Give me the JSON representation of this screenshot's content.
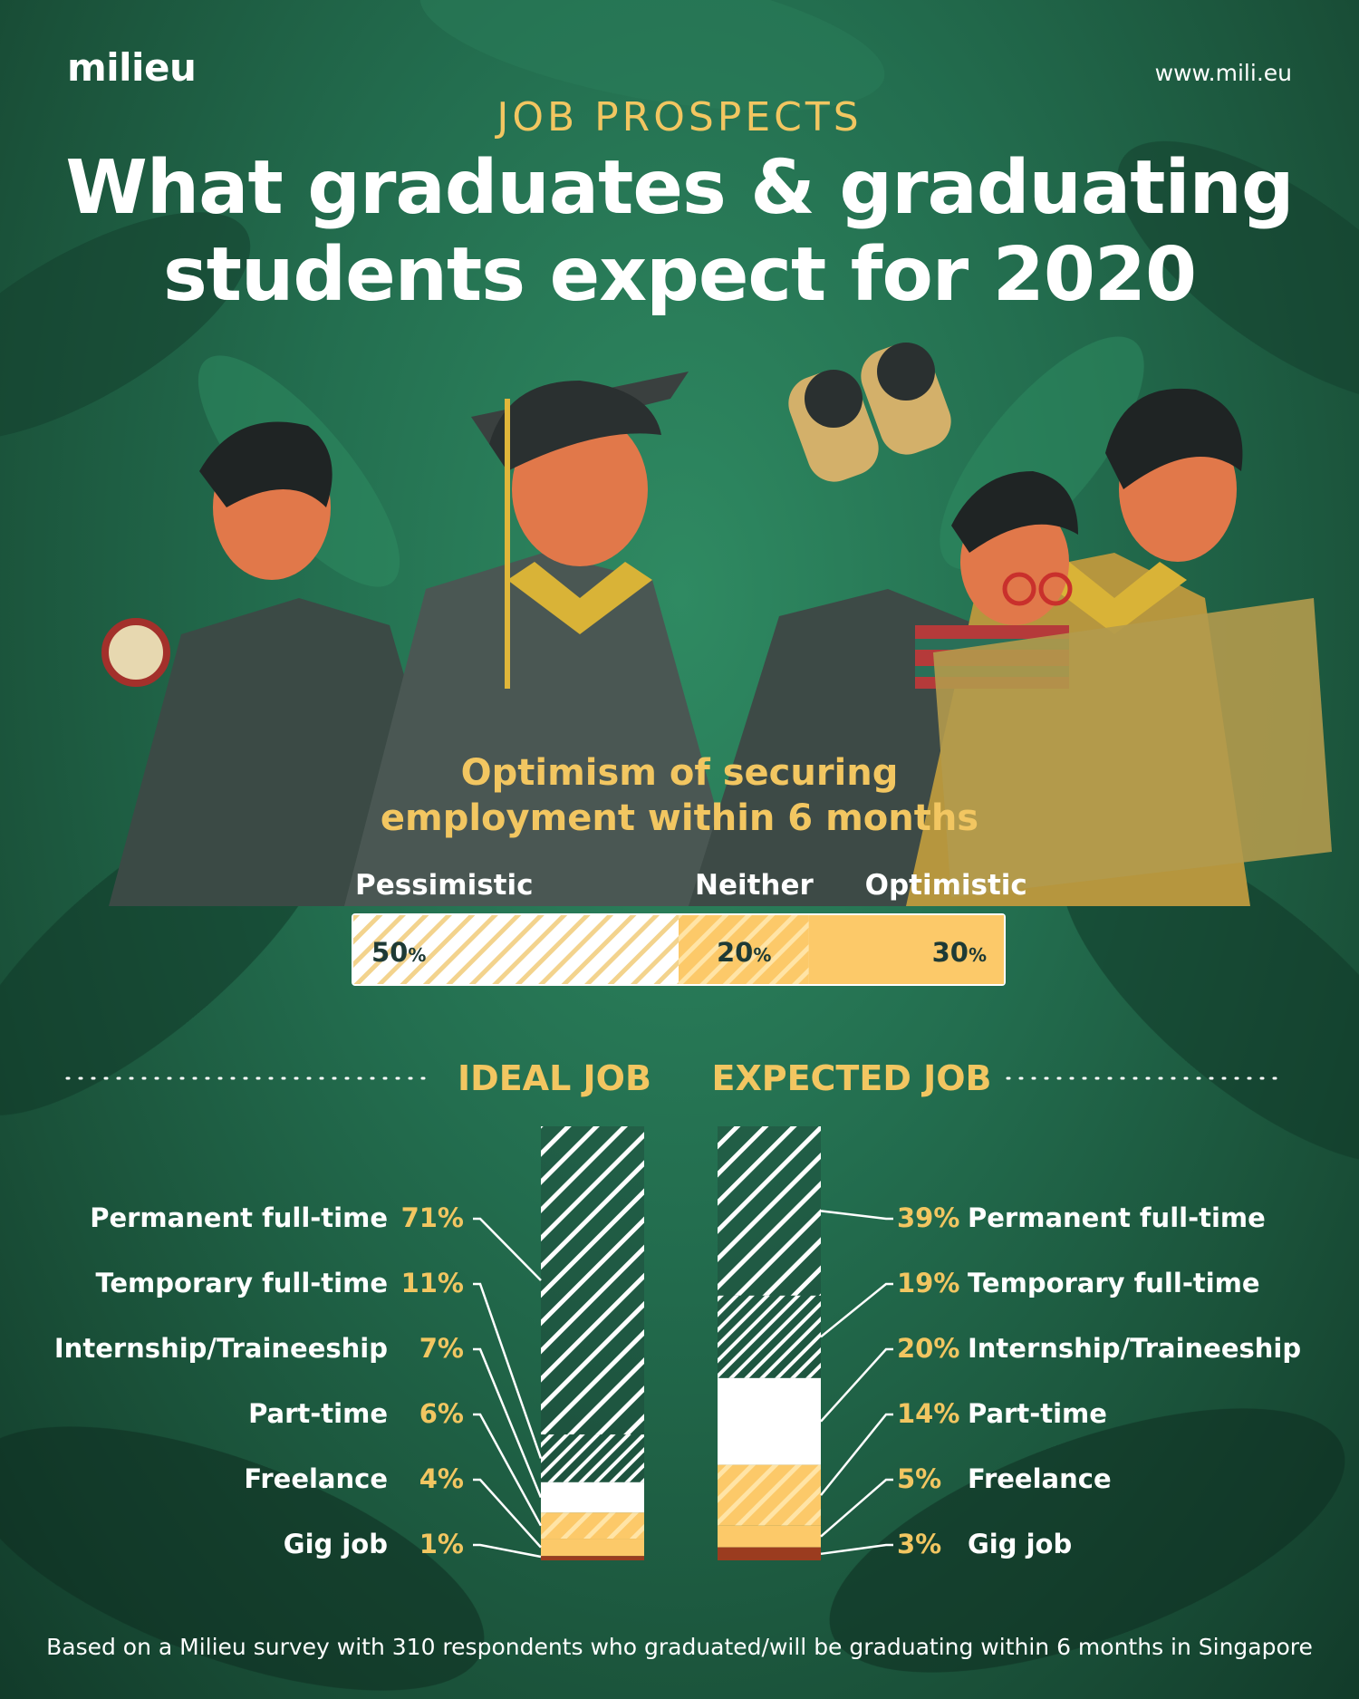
{
  "header": {
    "logo": "milieu",
    "url": "www.mili.eu",
    "kicker": "JOB PROSPECTS",
    "title_line1": "What graduates & graduating",
    "title_line2": "students expect for 2020"
  },
  "footnote": "Based on a Milieu survey with 310 respondents who graduated/will be graduating within 6 months in Singapore",
  "colors": {
    "accent": "#f2c661",
    "bar_yellow": "#fcc969",
    "gig": "#9b3c1f",
    "background": "#236e4f",
    "white": "#ffffff"
  },
  "chart_data": [
    {
      "type": "bar",
      "orientation": "horizontal-stacked",
      "title_line1": "Optimism of securing",
      "title_line2": "employment within 6 months",
      "series": [
        {
          "name": "Pessimistic",
          "value": 50,
          "value_label": "50",
          "unit": "%"
        },
        {
          "name": "Neither",
          "value": 20,
          "value_label": "20",
          "unit": "%"
        },
        {
          "name": "Optimistic",
          "value": 30,
          "value_label": "30",
          "unit": "%"
        }
      ]
    },
    {
      "type": "bar",
      "orientation": "vertical-stacked",
      "title": "IDEAL JOB",
      "categories": [
        "Permanent full-time",
        "Temporary full-time",
        "Internship/Traineeship",
        "Part-time",
        "Freelance",
        "Gig job"
      ],
      "values": [
        71,
        11,
        7,
        6,
        4,
        1
      ],
      "value_labels": [
        "71%",
        "11%",
        "7%",
        "6%",
        "4%",
        "1%"
      ]
    },
    {
      "type": "bar",
      "orientation": "vertical-stacked",
      "title": "EXPECTED JOB",
      "categories": [
        "Permanent full-time",
        "Temporary full-time",
        "Internship/Traineeship",
        "Part-time",
        "Freelance",
        "Gig job"
      ],
      "values": [
        39,
        19,
        20,
        14,
        5,
        3
      ],
      "value_labels": [
        "39%",
        "19%",
        "20%",
        "14%",
        "5%",
        "3%"
      ]
    }
  ]
}
